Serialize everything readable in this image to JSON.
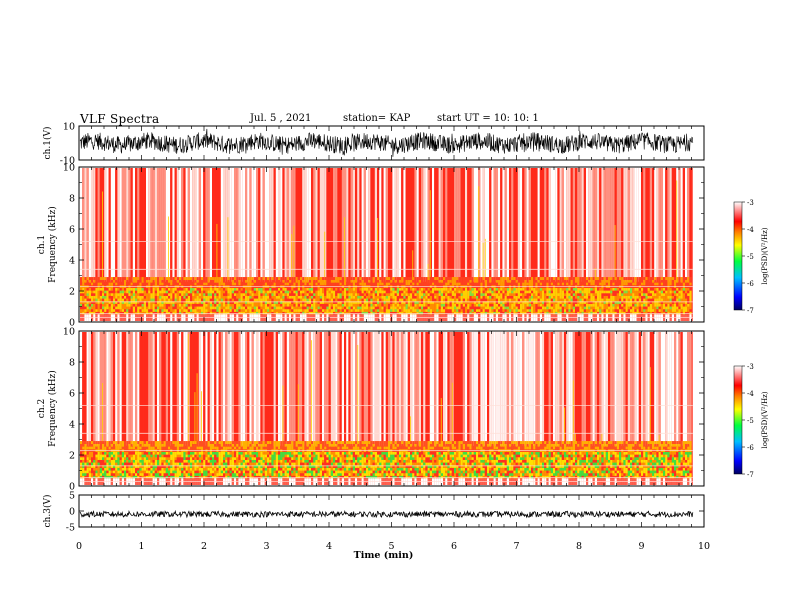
{
  "header": {
    "title": "VLF Spectra",
    "date": "Jul. 5 , 2021",
    "station": "station= KAP",
    "start": "start UT = 10: 10: 1"
  },
  "chart_data": [
    {
      "type": "line",
      "id": "ch1-waveform",
      "ylabel": "ch.1(V)",
      "yticks": [
        "10",
        "-10"
      ],
      "ylim": [
        -10,
        10
      ],
      "xlim": [
        0,
        10
      ],
      "trace_color": "#000000"
    },
    {
      "type": "heatmap",
      "id": "ch1-spectrogram",
      "ylabel": "ch.1\nFrequency (kHz)",
      "yticks": [
        "0",
        "2",
        "4",
        "6",
        "8",
        "10"
      ],
      "ylim": [
        0,
        10
      ],
      "xlim": [
        0,
        10
      ],
      "colorbar": {
        "label": "log(PSD)(V²/Hz)",
        "ticks": [
          "-3",
          "-4",
          "-5",
          "-6",
          "-7"
        ],
        "range": [
          -7,
          -3
        ],
        "colors": [
          "#000080",
          "#0000ff",
          "#00c0ff",
          "#00ff00",
          "#ffff00",
          "#ff8000",
          "#ff0000",
          "#ffffff"
        ]
      }
    },
    {
      "type": "heatmap",
      "id": "ch2-spectrogram",
      "ylabel": "ch.2\nFrequency (kHz)",
      "yticks": [
        "0",
        "2",
        "4",
        "6",
        "8",
        "10"
      ],
      "ylim": [
        0,
        10
      ],
      "xlim": [
        0,
        10
      ],
      "colorbar": {
        "label": "log(PSD)(V²/Hz)",
        "ticks": [
          "-3",
          "-4",
          "-5",
          "-6",
          "-7"
        ],
        "range": [
          -7,
          -3
        ],
        "colors": [
          "#000080",
          "#0000ff",
          "#00c0ff",
          "#00ff00",
          "#ffff00",
          "#ff8000",
          "#ff0000",
          "#ffffff"
        ]
      }
    },
    {
      "type": "line",
      "id": "ch3-waveform",
      "ylabel": "ch.3(V)",
      "yticks": [
        "5",
        "0",
        "-5"
      ],
      "ylim": [
        -5,
        5
      ],
      "xlim": [
        0,
        10
      ],
      "trace_color": "#000000"
    }
  ],
  "xaxis": {
    "label": "Time (min)",
    "ticks": [
      "0",
      "1",
      "2",
      "3",
      "4",
      "5",
      "6",
      "7",
      "8",
      "9",
      "10"
    ]
  }
}
